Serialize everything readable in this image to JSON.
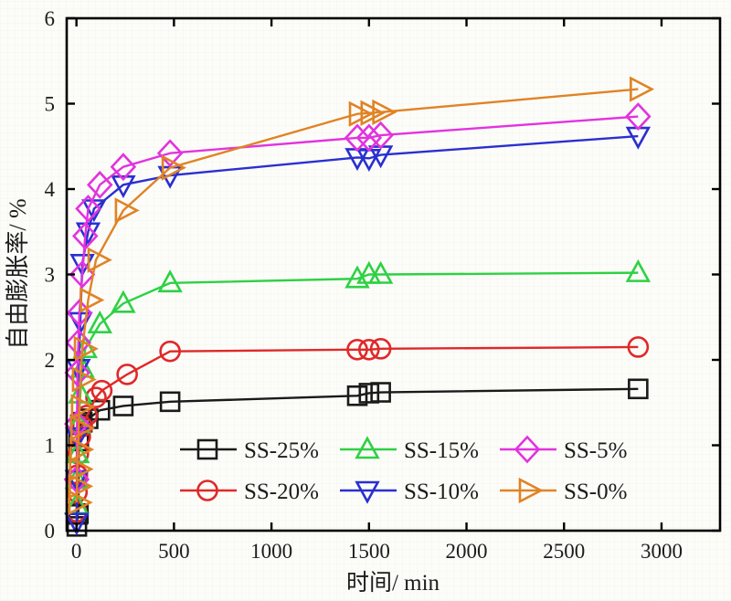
{
  "figure": {
    "background_color": "#fcfcf9",
    "frame_color": "#000000"
  },
  "chart_data": {
    "type": "line",
    "title": "",
    "xlabel": "时间/ min",
    "ylabel": "自由膨胀率/ %",
    "xlim": [
      -50,
      3300
    ],
    "ylim": [
      0,
      6
    ],
    "x_ticks": [
      0,
      500,
      1000,
      1500,
      2000,
      2500,
      3000
    ],
    "y_ticks": [
      0,
      1,
      2,
      3,
      4,
      5,
      6
    ],
    "grid": false,
    "legend_position": "inside-bottom-center",
    "legend_rows": 2,
    "legend_cols": 3,
    "series": [
      {
        "name": "SS-25%",
        "color": "#1a1a1a",
        "marker": "square",
        "points": [
          [
            2,
            0.05
          ],
          [
            6,
            0.19
          ],
          [
            10,
            0.2
          ],
          [
            12,
            1.05
          ],
          [
            20,
            1.24
          ],
          [
            30,
            1.27
          ],
          [
            60,
            1.31
          ],
          [
            120,
            1.41
          ],
          [
            240,
            1.46
          ],
          [
            480,
            1.51
          ],
          [
            1440,
            1.58
          ],
          [
            1500,
            1.61
          ],
          [
            1560,
            1.62
          ],
          [
            2880,
            1.66
          ]
        ]
      },
      {
        "name": "SS-20%",
        "color": "#e02828",
        "marker": "circle",
        "points": [
          [
            1,
            0.22
          ],
          [
            3,
            0.45
          ],
          [
            5,
            0.65
          ],
          [
            10,
            0.9
          ],
          [
            20,
            1.1
          ],
          [
            30,
            1.22
          ],
          [
            55,
            1.35
          ],
          [
            100,
            1.56
          ],
          [
            130,
            1.64
          ],
          [
            260,
            1.83
          ],
          [
            480,
            2.1
          ],
          [
            1440,
            2.12
          ],
          [
            1500,
            2.12
          ],
          [
            1560,
            2.13
          ],
          [
            2880,
            2.15
          ]
        ]
      },
      {
        "name": "SS-15%",
        "color": "#2ed143",
        "marker": "triangle-up",
        "points": [
          [
            1,
            0.3
          ],
          [
            3,
            0.6
          ],
          [
            5,
            0.9
          ],
          [
            10,
            1.25
          ],
          [
            20,
            1.6
          ],
          [
            30,
            1.9
          ],
          [
            45,
            2.13
          ],
          [
            120,
            2.42
          ],
          [
            240,
            2.66
          ],
          [
            480,
            2.9
          ],
          [
            1440,
            2.95
          ],
          [
            1500,
            3.0
          ],
          [
            1560,
            3.0
          ],
          [
            2880,
            3.02
          ]
        ]
      },
      {
        "name": "SS-10%",
        "color": "#2a2fd0",
        "marker": "triangle-down",
        "points": [
          [
            1,
            0.1
          ],
          [
            3,
            0.6
          ],
          [
            5,
            1.1
          ],
          [
            10,
            1.9
          ],
          [
            20,
            2.45
          ],
          [
            30,
            3.13
          ],
          [
            60,
            3.5
          ],
          [
            90,
            3.77
          ],
          [
            240,
            4.05
          ],
          [
            480,
            4.16
          ],
          [
            1440,
            4.37
          ],
          [
            1500,
            4.36
          ],
          [
            1560,
            4.4
          ],
          [
            2880,
            4.62
          ]
        ]
      },
      {
        "name": "SS-5%",
        "color": "#e233de",
        "marker": "diamond",
        "points": [
          [
            1,
            0.6
          ],
          [
            3,
            1.25
          ],
          [
            5,
            1.85
          ],
          [
            10,
            2.2
          ],
          [
            15,
            2.55
          ],
          [
            30,
            3.0
          ],
          [
            45,
            3.45
          ],
          [
            60,
            3.77
          ],
          [
            120,
            4.05
          ],
          [
            240,
            4.26
          ],
          [
            480,
            4.42
          ],
          [
            1440,
            4.6
          ],
          [
            1500,
            4.6
          ],
          [
            1560,
            4.63
          ],
          [
            2880,
            4.85
          ]
        ]
      },
      {
        "name": "SS-0%",
        "color": "#e08324",
        "marker": "triangle-right",
        "points": [
          [
            1,
            0.33
          ],
          [
            3,
            0.52
          ],
          [
            5,
            0.72
          ],
          [
            8,
            0.95
          ],
          [
            12,
            1.2
          ],
          [
            15,
            1.45
          ],
          [
            20,
            1.77
          ],
          [
            30,
            2.13
          ],
          [
            60,
            2.7
          ],
          [
            100,
            3.17
          ],
          [
            240,
            3.75
          ],
          [
            480,
            4.25
          ],
          [
            1440,
            4.88
          ],
          [
            1500,
            4.89
          ],
          [
            1560,
            4.9
          ],
          [
            2880,
            5.17
          ]
        ]
      }
    ]
  }
}
